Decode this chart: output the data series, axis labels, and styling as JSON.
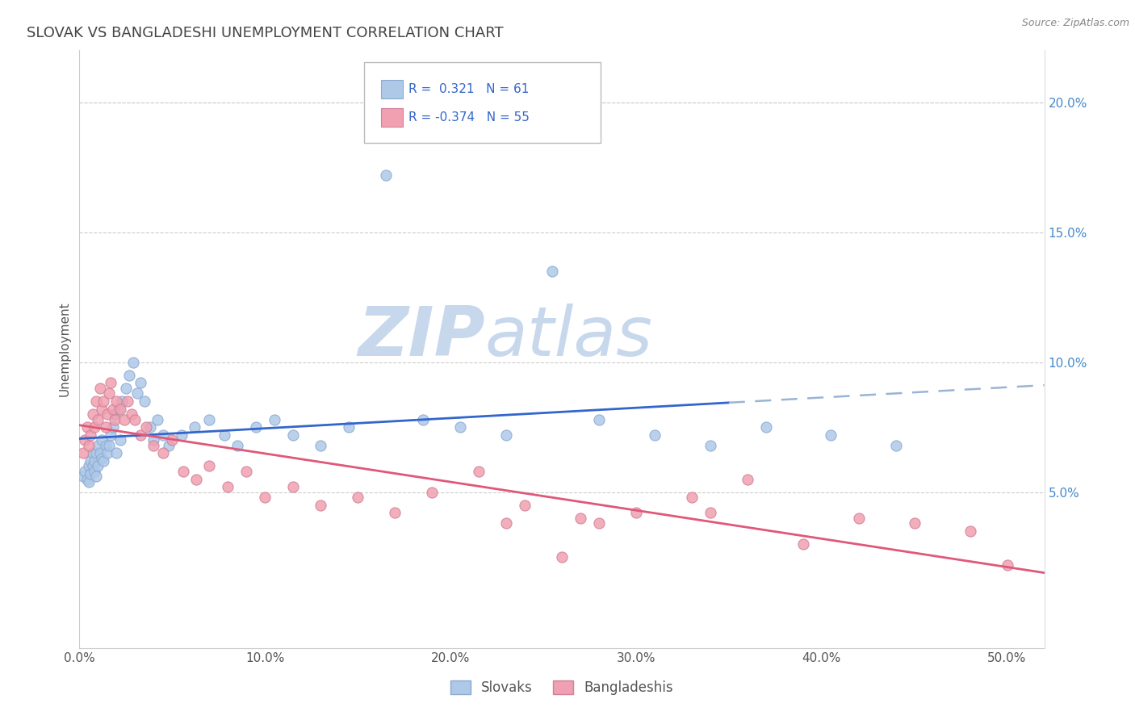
{
  "title": "SLOVAK VS BANGLADESHI UNEMPLOYMENT CORRELATION CHART",
  "source": "Source: ZipAtlas.com",
  "ylabel": "Unemployment",
  "xlim": [
    0.0,
    0.52
  ],
  "ylim": [
    -0.01,
    0.22
  ],
  "xticks": [
    0.0,
    0.1,
    0.2,
    0.3,
    0.4,
    0.5
  ],
  "xtick_labels": [
    "0.0%",
    "10.0%",
    "20.0%",
    "30.0%",
    "40.0%",
    "50.0%"
  ],
  "yticks_right": [
    0.05,
    0.1,
    0.15,
    0.2
  ],
  "ytick_labels_right": [
    "5.0%",
    "10.0%",
    "15.0%",
    "20.0%"
  ],
  "blue_color": "#aec8e8",
  "pink_color": "#f0a0b0",
  "line_blue": "#3366cc",
  "line_pink": "#e05878",
  "line_dash_color": "#9ab4d4",
  "watermark_zip": "ZIP",
  "watermark_atlas": "atlas",
  "watermark_color": "#c8d8ec",
  "title_color": "#444444",
  "source_color": "#888888",
  "axis_label_color": "#555555",
  "right_tick_color": "#4488cc",
  "grid_color": "#cccccc",
  "slovaks_x": [
    0.002,
    0.003,
    0.004,
    0.005,
    0.005,
    0.006,
    0.006,
    0.007,
    0.007,
    0.008,
    0.008,
    0.009,
    0.009,
    0.01,
    0.01,
    0.011,
    0.012,
    0.012,
    0.013,
    0.014,
    0.015,
    0.016,
    0.017,
    0.018,
    0.019,
    0.02,
    0.021,
    0.022,
    0.023,
    0.025,
    0.027,
    0.029,
    0.031,
    0.033,
    0.035,
    0.038,
    0.04,
    0.042,
    0.045,
    0.048,
    0.055,
    0.062,
    0.07,
    0.078,
    0.085,
    0.095,
    0.105,
    0.115,
    0.13,
    0.145,
    0.165,
    0.185,
    0.205,
    0.23,
    0.255,
    0.28,
    0.31,
    0.34,
    0.37,
    0.405,
    0.44
  ],
  "slovaks_y": [
    0.056,
    0.058,
    0.055,
    0.054,
    0.06,
    0.057,
    0.062,
    0.06,
    0.065,
    0.058,
    0.062,
    0.056,
    0.065,
    0.06,
    0.068,
    0.065,
    0.063,
    0.07,
    0.062,
    0.068,
    0.065,
    0.068,
    0.072,
    0.075,
    0.08,
    0.065,
    0.082,
    0.07,
    0.085,
    0.09,
    0.095,
    0.1,
    0.088,
    0.092,
    0.085,
    0.075,
    0.07,
    0.078,
    0.072,
    0.068,
    0.072,
    0.075,
    0.078,
    0.072,
    0.068,
    0.075,
    0.078,
    0.072,
    0.068,
    0.075,
    0.172,
    0.078,
    0.075,
    0.072,
    0.135,
    0.078,
    0.072,
    0.068,
    0.075,
    0.072,
    0.068
  ],
  "bangladeshis_x": [
    0.002,
    0.003,
    0.004,
    0.005,
    0.006,
    0.007,
    0.008,
    0.009,
    0.01,
    0.011,
    0.012,
    0.013,
    0.014,
    0.015,
    0.016,
    0.017,
    0.018,
    0.019,
    0.02,
    0.022,
    0.024,
    0.026,
    0.028,
    0.03,
    0.033,
    0.036,
    0.04,
    0.045,
    0.05,
    0.056,
    0.063,
    0.07,
    0.08,
    0.09,
    0.1,
    0.115,
    0.13,
    0.15,
    0.17,
    0.19,
    0.215,
    0.24,
    0.27,
    0.3,
    0.33,
    0.36,
    0.39,
    0.42,
    0.45,
    0.48,
    0.5,
    0.34,
    0.28,
    0.26,
    0.23
  ],
  "bangladeshis_y": [
    0.065,
    0.07,
    0.075,
    0.068,
    0.072,
    0.08,
    0.075,
    0.085,
    0.078,
    0.09,
    0.082,
    0.085,
    0.075,
    0.08,
    0.088,
    0.092,
    0.082,
    0.078,
    0.085,
    0.082,
    0.078,
    0.085,
    0.08,
    0.078,
    0.072,
    0.075,
    0.068,
    0.065,
    0.07,
    0.058,
    0.055,
    0.06,
    0.052,
    0.058,
    0.048,
    0.052,
    0.045,
    0.048,
    0.042,
    0.05,
    0.058,
    0.045,
    0.04,
    0.042,
    0.048,
    0.055,
    0.03,
    0.04,
    0.038,
    0.035,
    0.022,
    0.042,
    0.038,
    0.025,
    0.038
  ],
  "blue_line_solid_end": 0.35,
  "blue_line_dash_start": 0.35
}
